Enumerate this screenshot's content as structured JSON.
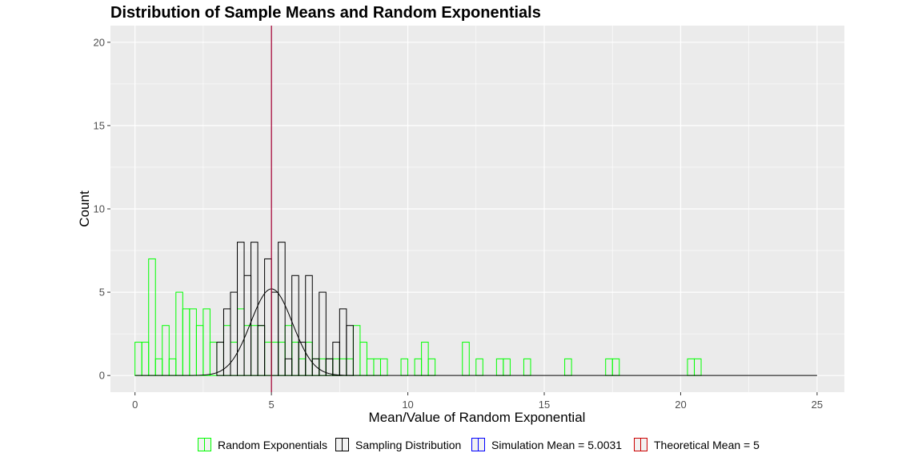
{
  "chart_data": {
    "type": "histogram",
    "title": "Distribution of Sample Means and Random Exponentials",
    "xlabel": "Mean/Value of Random Exponential",
    "ylabel": "Count",
    "xlim": [
      -0.9,
      26.0
    ],
    "ylim": [
      -1.0,
      21.0
    ],
    "x_ticks": [
      0,
      5,
      10,
      15,
      20,
      25
    ],
    "y_ticks": [
      0,
      5,
      10,
      15,
      20
    ],
    "grid": true,
    "legend_position": "bottom",
    "bin_width": 0.25,
    "series": [
      {
        "name": "Random Exponentials",
        "type": "histogram",
        "color": "#00ff00",
        "bin_starts": [
          0.0,
          0.25,
          0.5,
          0.75,
          1.0,
          1.25,
          1.5,
          1.75,
          2.0,
          2.25,
          2.5,
          2.75,
          3.0,
          3.25,
          3.5,
          3.75,
          4.0,
          4.25,
          4.5,
          4.75,
          5.0,
          5.25,
          5.5,
          5.75,
          6.0,
          6.25,
          6.5,
          6.75,
          7.0,
          7.25,
          7.5,
          7.75,
          8.0,
          8.25,
          8.5,
          8.75,
          9.0,
          9.25,
          9.5,
          9.75,
          10.0,
          10.25,
          10.5,
          10.75,
          11.0,
          11.25,
          11.5,
          11.75,
          12.0,
          12.25,
          12.5,
          12.75,
          13.0,
          13.25,
          13.5,
          13.75,
          14.0,
          14.25,
          14.5,
          14.75,
          15.0,
          15.25,
          15.5,
          15.75,
          16.0,
          16.25,
          16.5,
          16.75,
          17.0,
          17.25,
          17.5,
          17.75,
          18.0,
          18.25,
          18.5,
          18.75,
          19.0,
          19.25,
          19.5,
          19.75,
          20.0,
          20.25,
          20.5,
          20.75
        ],
        "counts": [
          2,
          2,
          7,
          1,
          3,
          1,
          5,
          4,
          4,
          3,
          4,
          2,
          2,
          3,
          2,
          4,
          3,
          3,
          3,
          2,
          2,
          2,
          3,
          2,
          1,
          2,
          1,
          1,
          1,
          1,
          1,
          1,
          3,
          2,
          1,
          1,
          1,
          0,
          0,
          1,
          0,
          1,
          2,
          1,
          0,
          0,
          0,
          0,
          2,
          0,
          1,
          0,
          0,
          1,
          1,
          0,
          0,
          1,
          0,
          0,
          0,
          0,
          0,
          1,
          0,
          0,
          0,
          0,
          0,
          1,
          1,
          0,
          0,
          0,
          0,
          0,
          0,
          0,
          0,
          0,
          0,
          1,
          1,
          0
        ]
      },
      {
        "name": "Sampling Distribution",
        "type": "histogram",
        "color": "#000000",
        "bin_starts": [
          0.0,
          0.25,
          0.5,
          0.75,
          1.0,
          1.25,
          1.5,
          1.75,
          2.0,
          2.25,
          2.5,
          2.75,
          3.0,
          3.25,
          3.5,
          3.75,
          4.0,
          4.25,
          4.5,
          4.75,
          5.0,
          5.25,
          5.5,
          5.75,
          6.0,
          6.25,
          6.5,
          6.75,
          7.0,
          7.25,
          7.5,
          7.75,
          8.0,
          8.25,
          8.5,
          8.75,
          9.0,
          9.25,
          9.5,
          9.75,
          10.0,
          10.25,
          10.5
        ],
        "counts": [
          0,
          0,
          0,
          0,
          0,
          0,
          0,
          0,
          0,
          0,
          0,
          0,
          2,
          4,
          5,
          8,
          6,
          8,
          3,
          7,
          5,
          8,
          1,
          6,
          2,
          6,
          1,
          5,
          1,
          2,
          4,
          3,
          0,
          0,
          0,
          0,
          0,
          0,
          0,
          0,
          0,
          0,
          0
        ]
      },
      {
        "name": "Sampling Density",
        "type": "line",
        "color": "#000000",
        "mean": 5.0031,
        "peak_count": 5.2,
        "x_start": 0,
        "x_end": 25
      },
      {
        "name": "Simulation Mean =  5.0031",
        "type": "vline",
        "color": "#0000ff",
        "x": 5.0031
      },
      {
        "name": "Theoretical Mean =  5",
        "type": "vline",
        "color": "#cc0000",
        "x": 5
      }
    ]
  },
  "legend": {
    "items": [
      {
        "label": "Random Exponentials",
        "color": "#00ff00"
      },
      {
        "label": "Sampling Distribution",
        "color": "#000000"
      },
      {
        "label": "Simulation Mean =  5.0031",
        "color": "#0000ff"
      },
      {
        "label": "Theoretical Mean =  5",
        "color": "#cc0000"
      }
    ]
  }
}
